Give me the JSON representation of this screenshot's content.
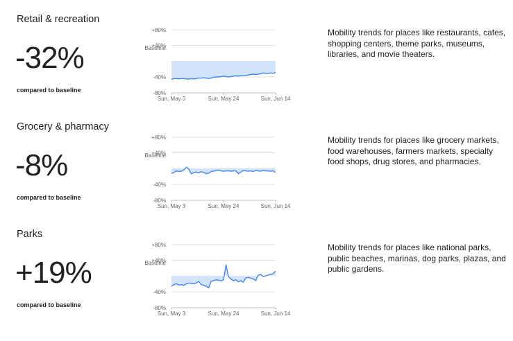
{
  "chart_data": [
    {
      "type": "line",
      "title": "Retail & recreation",
      "headline": "-32%",
      "caption": "compared to baseline",
      "description": "Mobility trends for places like restaurants, cafes, shopping centers, theme parks, museums, libraries, and movie theaters.",
      "baseline_label": "Baseline",
      "y_ticks": [
        {
          "value": 80,
          "label": "+80%"
        },
        {
          "value": 40,
          "label": "+40%"
        },
        {
          "value": -40,
          "label": "-40%"
        },
        {
          "value": -80,
          "label": "-80%"
        }
      ],
      "x_ticks": [
        {
          "date": "2020-05-03",
          "label": "Sun, May 3"
        },
        {
          "date": "2020-05-24",
          "label": "Sun, May 24"
        },
        {
          "date": "2020-06-14",
          "label": "Sun, Jun 14"
        }
      ],
      "x_range": [
        "2020-05-03",
        "2020-06-14"
      ],
      "ylim": [
        -80,
        80
      ],
      "line_color": "#4285f4",
      "fill_color": "#d2e3fc",
      "values": [
        -47,
        -44,
        -44,
        -45,
        -44,
        -44,
        -45,
        -45,
        -44,
        -45,
        -44,
        -43,
        -43,
        -42,
        -43,
        -44,
        -43,
        -41,
        -40,
        -40,
        -39,
        -38,
        -39,
        -40,
        -39,
        -38,
        -37,
        -38,
        -37,
        -36,
        -37,
        -35,
        -34,
        -33,
        -34,
        -33,
        -32,
        -30,
        -31,
        -31,
        -30,
        -31,
        -29
      ]
    },
    {
      "type": "line",
      "title": "Grocery & pharmacy",
      "headline": "-8%",
      "caption": "compared to baseline",
      "description": "Mobility trends for places like grocery markets, food warehouses, farmers markets, specialty food shops, drug stores, and pharmacies.",
      "baseline_label": "Baseline",
      "y_ticks": [
        {
          "value": 80,
          "label": "+80%"
        },
        {
          "value": 40,
          "label": "+40%"
        },
        {
          "value": -40,
          "label": "-40%"
        },
        {
          "value": -80,
          "label": "-80%"
        }
      ],
      "x_ticks": [
        {
          "date": "2020-05-03",
          "label": "Sun, May 3"
        },
        {
          "date": "2020-05-24",
          "label": "Sun, May 24"
        },
        {
          "date": "2020-06-14",
          "label": "Sun, Jun 14"
        }
      ],
      "x_range": [
        "2020-05-03",
        "2020-06-14"
      ],
      "ylim": [
        -80,
        80
      ],
      "line_color": "#4285f4",
      "fill_color": "#d2e3fc",
      "values": [
        -12,
        -10,
        -6,
        -8,
        -7,
        -4,
        3,
        -2,
        -14,
        -10,
        -9,
        -11,
        -8,
        -10,
        -13,
        -12,
        -8,
        -7,
        -5,
        -4,
        -6,
        -7,
        -6,
        -6,
        -7,
        -6,
        -6,
        -13,
        -9,
        -5,
        -6,
        -7,
        -6,
        -8,
        -5,
        -6,
        -7,
        -5,
        -6,
        -6,
        -7,
        -6,
        -10
      ]
    },
    {
      "type": "line",
      "title": "Parks",
      "headline": "+19%",
      "caption": "compared to baseline",
      "description": "Mobility trends for places like national parks, public beaches, marinas, dog parks, plazas, and public gardens.",
      "baseline_label": "Baseline",
      "y_ticks": [
        {
          "value": 80,
          "label": "+80%"
        },
        {
          "value": 40,
          "label": "+40%"
        },
        {
          "value": -40,
          "label": "-40%"
        },
        {
          "value": -80,
          "label": "-80%"
        }
      ],
      "x_ticks": [
        {
          "date": "2020-05-03",
          "label": "Sun, May 3"
        },
        {
          "date": "2020-05-24",
          "label": "Sun, May 24"
        },
        {
          "date": "2020-06-14",
          "label": "Sun, Jun 14"
        }
      ],
      "x_range": [
        "2020-05-03",
        "2020-06-14"
      ],
      "ylim": [
        -80,
        80
      ],
      "line_color": "#4285f4",
      "fill_color": "#d2e3fc",
      "values": [
        -26,
        -22,
        -20,
        -23,
        -22,
        -24,
        -20,
        -18,
        -19,
        -20,
        -18,
        -14,
        -22,
        -24,
        -26,
        -30,
        -14,
        -12,
        -10,
        -11,
        -13,
        -10,
        28,
        -2,
        -8,
        -12,
        -10,
        -15,
        -12,
        -16,
        -5,
        -4,
        -6,
        -8,
        -12,
        2,
        4,
        -2,
        0,
        2,
        4,
        6,
        12
      ]
    }
  ]
}
